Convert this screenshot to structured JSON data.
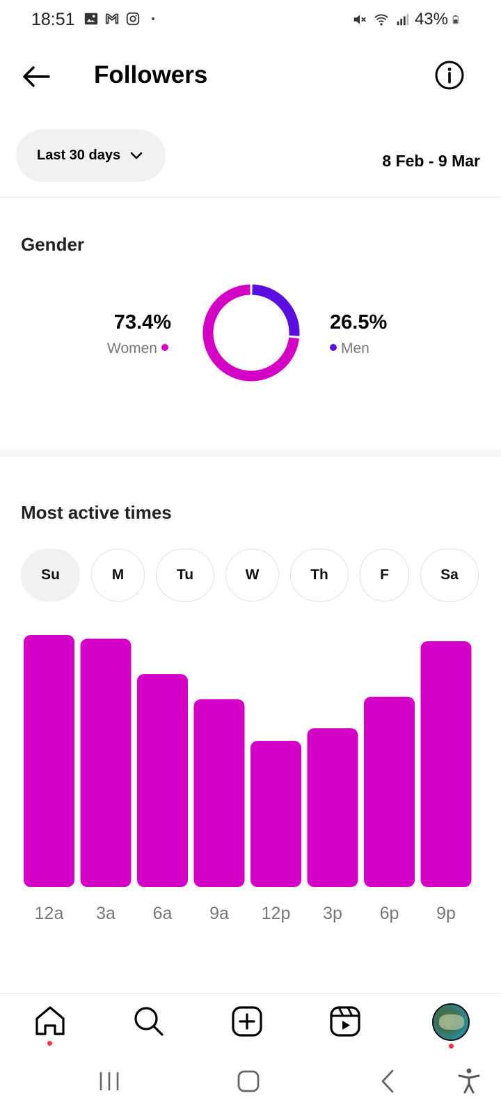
{
  "status_bar": {
    "time": "18:51",
    "battery": "43%",
    "left_icons": [
      "gallery-icon",
      "gmail-icon",
      "instagram-icon",
      "dot-icon"
    ],
    "right_icons": [
      "mute-icon",
      "wifi-icon",
      "signal-icon",
      "battery-icon"
    ]
  },
  "header": {
    "title": "Followers"
  },
  "filter": {
    "range_label": "Last 30 days",
    "date_range": "8 Feb - 9 Mar"
  },
  "gender": {
    "title": "Gender",
    "women": {
      "value": "73.4%",
      "label": "Women",
      "fraction": 0.734
    },
    "men": {
      "value": "26.5%",
      "label": "Men",
      "fraction": 0.265
    },
    "colors": {
      "women": "#d500c6",
      "men": "#5b0ee0"
    }
  },
  "active_times": {
    "title": "Most active times",
    "days": [
      {
        "label": "Su",
        "selected": true
      },
      {
        "label": "M",
        "selected": false
      },
      {
        "label": "Tu",
        "selected": false
      },
      {
        "label": "W",
        "selected": false
      },
      {
        "label": "Th",
        "selected": false
      },
      {
        "label": "F",
        "selected": false
      },
      {
        "label": "Sa",
        "selected": false
      }
    ]
  },
  "chart_data": {
    "type": "bar",
    "categories": [
      "12a",
      "3a",
      "6a",
      "9a",
      "12p",
      "3p",
      "6p",
      "9p"
    ],
    "values": [
      100,
      98.5,
      84.5,
      74.5,
      58,
      63,
      75.5,
      97.5
    ],
    "ylim": [
      0,
      100
    ],
    "color": "#d500c6",
    "grid": false,
    "legend": "none"
  },
  "bottom_nav": {
    "items": [
      "home-icon",
      "search-icon",
      "create-icon",
      "reels-icon",
      "profile-avatar"
    ]
  },
  "system_nav": {
    "items": [
      "recents-icon",
      "home-button-icon",
      "back-icon",
      "accessibility-icon"
    ]
  }
}
